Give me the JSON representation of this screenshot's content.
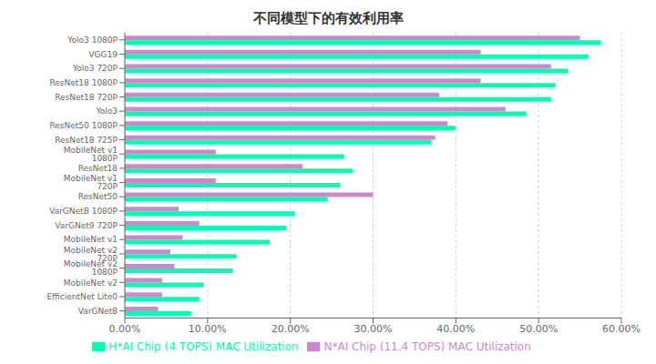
{
  "chart_data": {
    "type": "bar",
    "title": "不同模型下的有效利用率",
    "orientation": "horizontal",
    "categories": [
      "Yolo3 1080P",
      "VGG19",
      "Yolo3 720P",
      "ResNet18 1080P",
      "ResNet18 720P",
      "Yolo3",
      "ResNet50 1080P",
      "ResNet18 725P",
      "MobileNet v1 1080P",
      "ResNet18",
      "MobileNet v1 720P",
      "ResNet50",
      "VarGNetB 1080P",
      "VarGNet9 720P",
      "MobileNet v1",
      "MobileNet v2 720P",
      "MobileNet v2 1080P",
      "MobileNet v2",
      "EfficientNet Lite0",
      "VarGNet8"
    ],
    "series": [
      {
        "name": "N*AI Chip (11.4 TOPS) MAC Utilization",
        "color": "#cc88cc",
        "values": [
          55.0,
          43.0,
          51.5,
          43.0,
          38.0,
          46.0,
          39.0,
          37.5,
          11.0,
          21.5,
          11.0,
          30.0,
          6.5,
          9.0,
          7.0,
          5.5,
          6.0,
          4.5,
          4.5,
          4.0
        ]
      },
      {
        "name": "H*AI Chip (4 TOPS) MAC Utilization",
        "color": "#00ffb0",
        "values": [
          57.5,
          56.0,
          53.5,
          52.0,
          51.5,
          48.5,
          40.0,
          37.0,
          26.5,
          27.5,
          26.0,
          24.5,
          20.5,
          19.5,
          17.5,
          13.5,
          13.0,
          9.5,
          9.0,
          8.0
        ]
      }
    ],
    "xlim": [
      0,
      60
    ],
    "xticks": [
      {
        "value": 0,
        "label": "0.00%"
      },
      {
        "value": 10,
        "label": "10.00%"
      },
      {
        "value": 20,
        "label": "20.00%"
      },
      {
        "value": 30,
        "label": "30.00%"
      },
      {
        "value": 40,
        "label": "40.00%"
      },
      {
        "value": 50,
        "label": "50.00%"
      },
      {
        "value": 60,
        "label": "60.00%"
      }
    ],
    "grid": true,
    "legend": "bottom"
  }
}
